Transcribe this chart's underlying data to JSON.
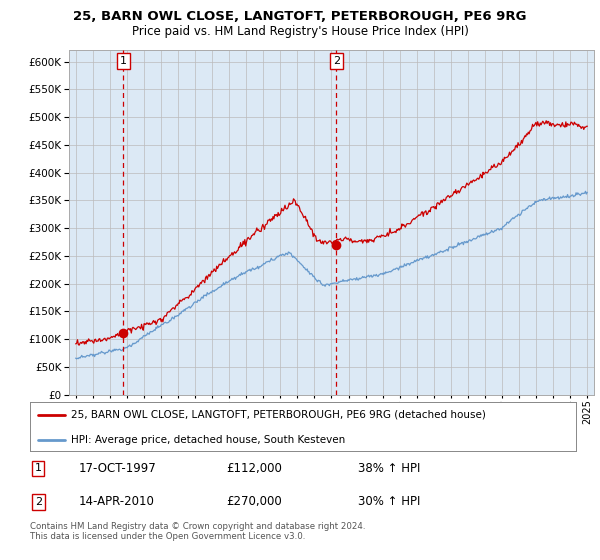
{
  "title1": "25, BARN OWL CLOSE, LANGTOFT, PETERBOROUGH, PE6 9RG",
  "title2": "Price paid vs. HM Land Registry's House Price Index (HPI)",
  "background_color": "#dce9f5",
  "legend_line1": "25, BARN OWL CLOSE, LANGTOFT, PETERBOROUGH, PE6 9RG (detached house)",
  "legend_line2": "HPI: Average price, detached house, South Kesteven",
  "sale1_date": "17-OCT-1997",
  "sale1_price": 112000,
  "sale1_pct": "38% ↑ HPI",
  "sale2_date": "14-APR-2010",
  "sale2_price": 270000,
  "sale2_pct": "30% ↑ HPI",
  "footer": "Contains HM Land Registry data © Crown copyright and database right 2024.\nThis data is licensed under the Open Government Licence v3.0.",
  "red_line_color": "#cc0000",
  "blue_line_color": "#6699cc",
  "sale_marker_color": "#cc0000",
  "vline_color": "#cc0000",
  "grid_color": "#bbbbbb",
  "ylim": [
    0,
    620000
  ],
  "yticks": [
    0,
    50000,
    100000,
    150000,
    200000,
    250000,
    300000,
    350000,
    400000,
    450000,
    500000,
    550000,
    600000
  ],
  "sale1_x": 1997.79,
  "sale1_y": 112000,
  "sale2_x": 2010.28,
  "sale2_y": 270000,
  "xlim": [
    1994.6,
    2025.4
  ]
}
